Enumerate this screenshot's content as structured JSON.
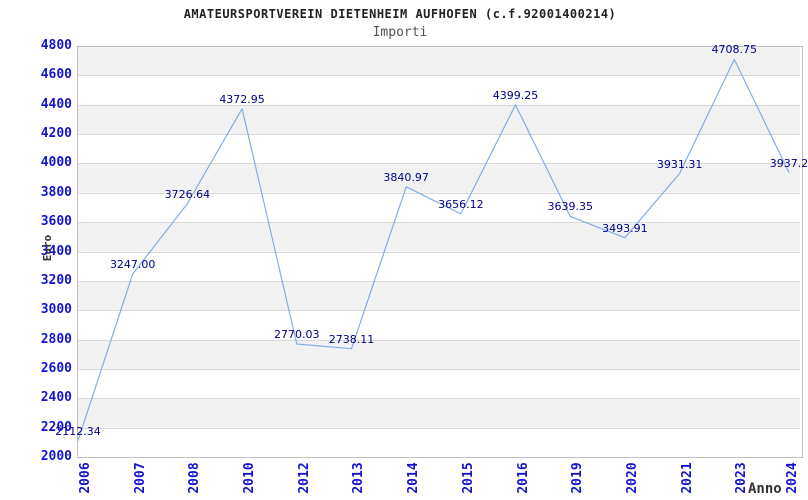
{
  "chart_data": {
    "type": "line",
    "title": "AMATEURSPORTVEREIN DIETENHEIM AUFHOFEN (c.f.92001400214)",
    "subtitle": "Importi",
    "xlabel": "Anno",
    "ylabel": "Euro",
    "categories": [
      "2006",
      "2007",
      "2008",
      "2010",
      "2012",
      "2013",
      "2014",
      "2015",
      "2016",
      "2019",
      "2020",
      "2021",
      "2023",
      "2024"
    ],
    "series": [
      {
        "name": "Importi",
        "values": [
          2112.34,
          3247.0,
          3726.64,
          4372.95,
          2770.03,
          2738.11,
          3840.97,
          3656.12,
          4399.25,
          3639.35,
          3493.91,
          3931.31,
          4708.75,
          3937.2
        ],
        "point_labels": [
          "2112.34",
          "3247.00",
          "3726.64",
          "4372.95",
          "2770.03",
          "2738.11",
          "3840.97",
          "3656.12",
          "4399.25",
          "3639.35",
          "3493.91",
          "3931.31",
          "4708.75",
          "3937.2"
        ]
      }
    ],
    "ylim": [
      2000,
      4800
    ],
    "ytick_step": 200,
    "grid": true,
    "legend": "none",
    "banded_background": true,
    "colors": {
      "line": "#82aee6",
      "point_label": "#00008b",
      "tick_label": "#1414cd",
      "axis_title": "#333333",
      "band": "#f2f2f2",
      "gridline": "#d9d9d9",
      "plot_border": "#c0c0c0",
      "title_text": "#222222",
      "subtitle_text": "#555555",
      "background": "#ffffff"
    }
  }
}
